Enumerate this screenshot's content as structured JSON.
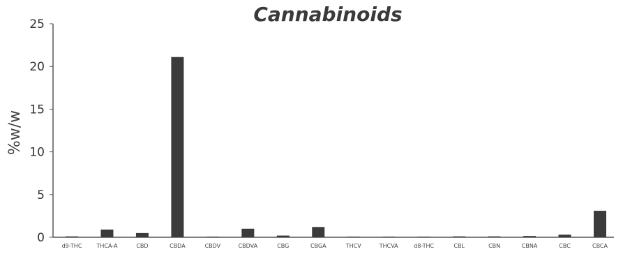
{
  "chart_data": {
    "type": "bar",
    "title": "Cannabinoids",
    "xlabel": "",
    "ylabel": "%w/w",
    "ylim": [
      0,
      25
    ],
    "yticks": [
      0,
      5,
      10,
      15,
      20,
      25
    ],
    "grid": false,
    "legend": "none",
    "categories": [
      "d9-THC",
      "THCA-A",
      "CBD",
      "CBDA",
      "CBDV",
      "CBDVA",
      "CBG",
      "CBGA",
      "THCV",
      "THCVA",
      "d8-THC",
      "CBL",
      "CBN",
      "CBNA",
      "CBC",
      "CBCA"
    ],
    "values": [
      0.1,
      0.9,
      0.5,
      21.1,
      0.05,
      1.0,
      0.2,
      1.2,
      0.05,
      0.05,
      0.05,
      0.1,
      0.1,
      0.15,
      0.3,
      3.1
    ],
    "colors": {
      "bar": "#3b3b3b",
      "axis": "#555555"
    }
  }
}
